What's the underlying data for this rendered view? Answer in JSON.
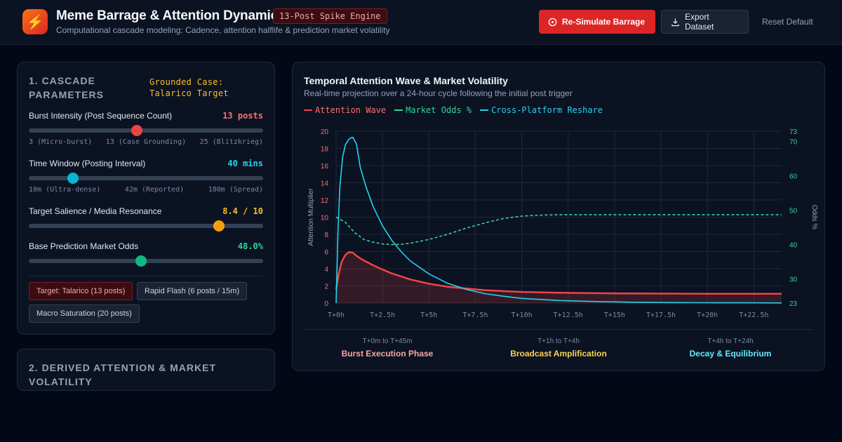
{
  "header": {
    "logo_icon": "lightning-icon",
    "title": "Meme Barrage & Attention Dynamics",
    "badge": "13-Post Spike Engine",
    "subtitle": "Computational cascade modeling: Cadence, attention halflife & prediction market volatility",
    "resimulate_label": "Re-Simulate Barrage",
    "export_label": "Export Dataset",
    "reset_label": "Reset Default"
  },
  "params": {
    "title": "1. CASCADE PARAMETERS",
    "case_label": "Grounded Case: Talarico Target",
    "burst": {
      "label": "Burst Intensity (Post Sequence Count)",
      "value_text": "13 posts",
      "level": 0.46,
      "color": "#ef4444",
      "ticks": [
        "3 (Micro-burst)",
        "13 (Case Grounding)",
        "25 (Blitzkrieg)"
      ]
    },
    "window": {
      "label": "Time Window (Posting Interval)",
      "value_text": "40 mins",
      "level": 0.19,
      "color": "#06b6d4",
      "ticks": [
        "10m (Ultra-dense)",
        "42m (Reported)",
        "180m (Spread)"
      ]
    },
    "salience": {
      "label": "Target Salience / Media Resonance",
      "value_text": "8.4 / 10",
      "level": 0.81,
      "color": "#f59e0b"
    },
    "odds": {
      "label": "Base Prediction Market Odds",
      "value_text": "48.0%",
      "level": 0.48,
      "color": "#10b981"
    },
    "presets": [
      "Target: Talarico (13 posts)",
      "Rapid Flash (6 posts / 15m)",
      "Macro Saturation (20 posts)"
    ]
  },
  "derived": {
    "title": "2. DERIVED ATTENTION & MARKET VOLATILITY"
  },
  "chart_panel": {
    "title": "Temporal Attention Wave & Market Volatility",
    "subtitle": "Real-time projection over a 24-hour cycle following the initial post trigger",
    "phases": [
      {
        "range": "T+0m to T+45m",
        "name": "Burst Execution Phase",
        "color": "#fca5a5"
      },
      {
        "range": "T+1h to T+4h",
        "name": "Broadcast Amplification",
        "color": "#fcd34d"
      },
      {
        "range": "T+4h to T+24h",
        "name": "Decay & Equilibrium",
        "color": "#67e8f9"
      }
    ]
  },
  "chart_data": {
    "type": "line",
    "xlabel": "",
    "ylabel": "Attention Multiplier",
    "y2label": "Odds %",
    "x_ticks": [
      "T+0h",
      "T+2.5h",
      "T+5h",
      "T+7.5h",
      "T+10h",
      "T+12.5h",
      "T+15h",
      "T+17.5h",
      "T+20h",
      "T+22.5h"
    ],
    "xlim": [
      0,
      24
    ],
    "ylim": [
      0,
      20
    ],
    "y_ticks": [
      0,
      2,
      4,
      6,
      8,
      10,
      12,
      14,
      16,
      18,
      20
    ],
    "y2lim": [
      23,
      73
    ],
    "y2_ticks": [
      23,
      30,
      40,
      50,
      60,
      70,
      73
    ],
    "grid": true,
    "legend": "top-left",
    "series": [
      {
        "name": "Attention Wave",
        "axis": "left",
        "color": "#ef4444",
        "style": "solid",
        "fill": true,
        "x": [
          0,
          0.15,
          0.3,
          0.5,
          0.7,
          0.9,
          1.1,
          1.3,
          1.6,
          2,
          2.5,
          3,
          4,
          5,
          6,
          8,
          10,
          12,
          14,
          16,
          18,
          20,
          22,
          24
        ],
        "y": [
          1.6,
          3.5,
          4.8,
          5.6,
          5.95,
          5.85,
          5.5,
          5.2,
          4.85,
          4.4,
          3.9,
          3.45,
          2.75,
          2.25,
          1.9,
          1.5,
          1.3,
          1.2,
          1.15,
          1.12,
          1.1,
          1.08,
          1.08,
          1.08
        ]
      },
      {
        "name": "Market Odds %",
        "axis": "right",
        "color": "#34d399",
        "style": "dashed",
        "fill": false,
        "x": [
          0,
          0.5,
          1,
          1.5,
          2,
          2.5,
          3,
          3.5,
          4,
          5,
          6,
          7,
          8,
          9,
          10,
          11,
          12,
          13,
          14,
          16,
          18,
          20,
          22,
          24
        ],
        "y": [
          48,
          46.5,
          43.5,
          41.5,
          40.7,
          40.2,
          40,
          40.1,
          40.4,
          41.5,
          43,
          44.8,
          46.3,
          47.6,
          48.3,
          48.6,
          48.7,
          48.7,
          48.7,
          48.7,
          48.7,
          48.7,
          48.7,
          48.7
        ]
      },
      {
        "name": "Cross-Platform Reshare",
        "axis": "left",
        "color": "#22d3ee",
        "style": "solid",
        "fill": false,
        "x": [
          0,
          0.1,
          0.2,
          0.35,
          0.5,
          0.7,
          0.9,
          1.1,
          1.3,
          1.6,
          2,
          2.5,
          3,
          3.5,
          4,
          5,
          6,
          7,
          8,
          9,
          10,
          12,
          14,
          16,
          18,
          20,
          22,
          24
        ],
        "y": [
          0,
          8,
          13.5,
          17,
          18.4,
          19.1,
          19.3,
          18.5,
          15.8,
          13.6,
          11.2,
          9,
          7.3,
          6,
          4.9,
          3.4,
          2.3,
          1.6,
          1.1,
          0.8,
          0.55,
          0.3,
          0.18,
          0.1,
          0.06,
          0.04,
          0.03,
          0.02
        ]
      }
    ]
  }
}
